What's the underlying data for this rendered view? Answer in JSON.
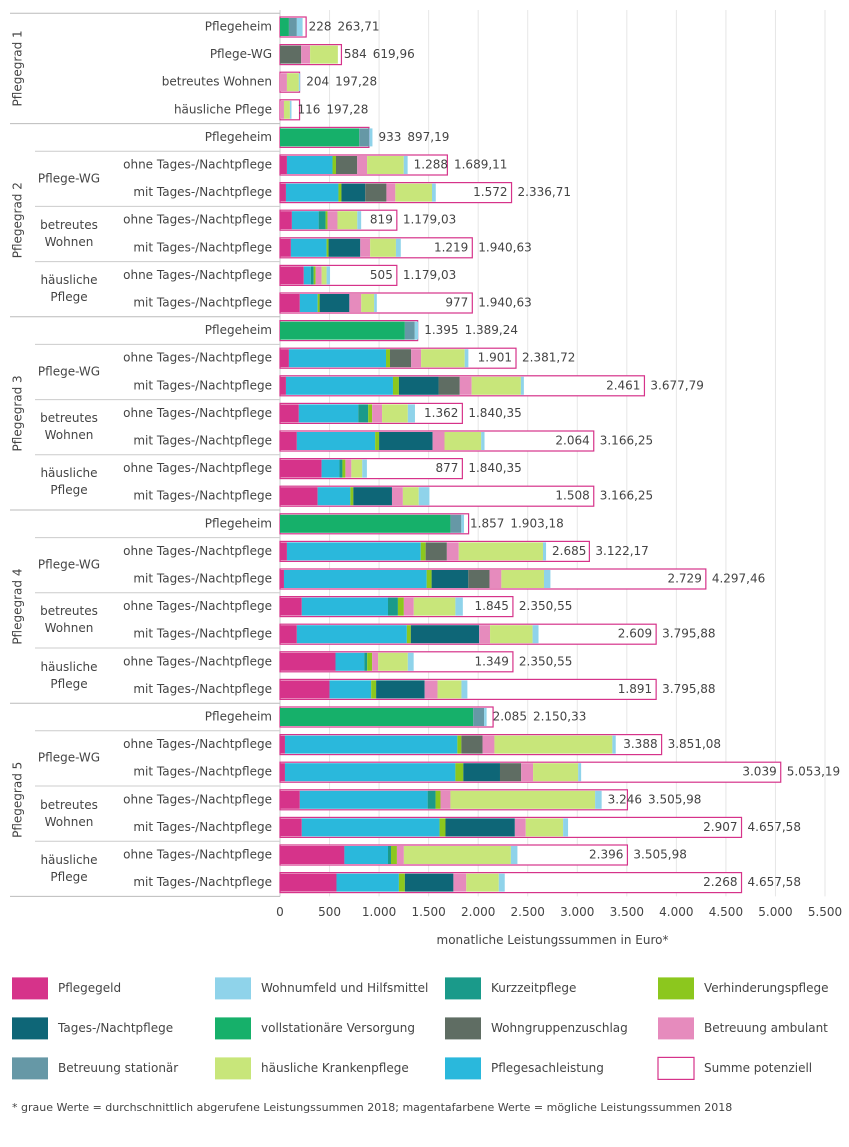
{
  "chart_data": {
    "type": "stacked-bar-horizontal",
    "groups": [
      {
        "name": "Pflegegrad 1",
        "rows": [
          {
            "label": "Pflegeheim"
          },
          {
            "label": "Pflege-WG"
          },
          {
            "label": "betreutes Wohnen"
          },
          {
            "label": "häusliche Pflege"
          }
        ]
      },
      {
        "name": "Pflegegrad 2",
        "rows": [
          {
            "label": "Pflegeheim"
          },
          {
            "name": "Pflege-WG",
            "rows": [
              {
                "label": "ohne Tages-/Nachtpflege"
              },
              {
                "label": "mit Tages-/Nachtpflege"
              }
            ]
          },
          {
            "name": "betreutes Wohnen",
            "rows": [
              {
                "label": "ohne Tages-/Nachtpflege"
              },
              {
                "label": "mit Tages-/Nachtpflege"
              }
            ]
          },
          {
            "name": "häusliche Pflege",
            "rows": [
              {
                "label": "ohne Tages-/Nachtpflege"
              },
              {
                "label": "mit Tages-/Nachtpflege"
              }
            ]
          }
        ]
      },
      {
        "name": "Pflegegrad 3",
        "rows": [
          {
            "label": "Pflegeheim"
          },
          {
            "name": "Pflege-WG",
            "rows": [
              {
                "label": "ohne Tages-/Nachtpflege"
              },
              {
                "label": "mit Tages-/Nachtpflege"
              }
            ]
          },
          {
            "name": "betreutes Wohnen",
            "rows": [
              {
                "label": "ohne Tages-/Nachtpflege"
              },
              {
                "label": "mit Tages-/Nachtpflege"
              }
            ]
          },
          {
            "name": "häusliche Pflege",
            "rows": [
              {
                "label": "ohne Tages-/Nachtpflege"
              },
              {
                "label": "mit Tages-/Nachtpflege"
              }
            ]
          }
        ]
      },
      {
        "name": "Pflegegrad 4",
        "rows": [
          {
            "label": "Pflegeheim"
          },
          {
            "name": "Pflege-WG",
            "rows": [
              {
                "label": "ohne Tages-/Nachtpflege"
              },
              {
                "label": "mit Tages-/Nachtpflege"
              }
            ]
          },
          {
            "name": "betreutes Wohnen",
            "rows": [
              {
                "label": "ohne Tages-/Nachtpflege"
              },
              {
                "label": "mit Tages-/Nachtpflege"
              }
            ]
          },
          {
            "name": "häusliche Pflege",
            "rows": [
              {
                "label": "ohne Tages-/Nachtpflege"
              },
              {
                "label": "mit Tages-/Nachtpflege"
              }
            ]
          }
        ]
      },
      {
        "name": "Pflegegrad 5",
        "rows": [
          {
            "label": "Pflegeheim"
          },
          {
            "name": "Pflege-WG",
            "rows": [
              {
                "label": "ohne Tages-/Nachtpflege"
              },
              {
                "label": "mit Tages-/Nachtpflege"
              }
            ]
          },
          {
            "name": "betreutes Wohnen",
            "rows": [
              {
                "label": "ohne Tages-/Nachtpflege"
              },
              {
                "label": "mit Tages-/Nachtpflege"
              }
            ]
          },
          {
            "name": "häusliche Pflege",
            "rows": [
              {
                "label": "ohne Tages-/Nachtpflege"
              },
              {
                "label": "mit Tages-/Nachtpflege"
              }
            ]
          }
        ]
      }
    ],
    "series": [
      {
        "name": "Pflegegeld",
        "color": "#d6338a",
        "values": [
          null,
          null,
          null,
          null,
          null,
          70,
          60,
          120,
          110,
          240,
          200,
          null,
          90,
          60,
          190,
          170,
          420,
          380,
          null,
          70,
          40,
          220,
          170,
          560,
          500,
          null,
          50,
          50,
          200,
          220,
          650,
          570
        ]
      },
      {
        "name": "Pflegesachleistung",
        "color": "#2ab8dc",
        "values": [
          null,
          null,
          null,
          null,
          null,
          460,
          530,
          270,
          360,
          70,
          180,
          null,
          980,
          1080,
          600,
          790,
          180,
          330,
          null,
          1350,
          1440,
          870,
          1110,
          290,
          420,
          null,
          1740,
          1720,
          1290,
          1390,
          440,
          630
        ]
      },
      {
        "name": "Kurzzeitpflege",
        "color": "#1a9a8a",
        "values": [
          null,
          null,
          null,
          null,
          null,
          null,
          null,
          70,
          null,
          30,
          null,
          null,
          null,
          null,
          100,
          null,
          30,
          null,
          null,
          null,
          null,
          100,
          null,
          30,
          null,
          null,
          null,
          null,
          80,
          null,
          30,
          null
        ]
      },
      {
        "name": "Verhinderungspflege",
        "color": "#8cc71e",
        "values": [
          null,
          null,
          null,
          null,
          null,
          35,
          30,
          20,
          20,
          20,
          20,
          null,
          40,
          60,
          40,
          40,
          30,
          30,
          null,
          50,
          50,
          60,
          40,
          50,
          50,
          null,
          40,
          80,
          50,
          60,
          60,
          60
        ]
      },
      {
        "name": "vollstationäre Versorgung",
        "color": "#16b06a",
        "values": [
          90,
          null,
          null,
          null,
          800,
          null,
          null,
          null,
          null,
          null,
          null,
          1260,
          null,
          null,
          null,
          null,
          null,
          null,
          1720,
          null,
          null,
          null,
          null,
          null,
          null,
          1950,
          null,
          null,
          null,
          null,
          null,
          null
        ]
      },
      {
        "name": "Tages-/Nachtpflege",
        "color": "#0e6677",
        "values": [
          null,
          null,
          null,
          null,
          null,
          null,
          240,
          null,
          320,
          null,
          300,
          null,
          null,
          400,
          null,
          540,
          null,
          390,
          null,
          null,
          370,
          null,
          690,
          null,
          490,
          null,
          null,
          370,
          null,
          700,
          null,
          490
        ]
      },
      {
        "name": "Wohngruppenzuschlag",
        "color": "#5f6d63",
        "values": [
          null,
          214,
          null,
          null,
          null,
          214,
          214,
          null,
          null,
          null,
          null,
          null,
          214,
          214,
          null,
          null,
          null,
          null,
          null,
          214,
          214,
          null,
          null,
          null,
          null,
          null,
          214,
          214,
          null,
          null,
          null,
          null
        ]
      },
      {
        "name": "Betreuung ambulant",
        "color": "#e68bbd",
        "values": [
          null,
          90,
          70,
          40,
          null,
          100,
          90,
          100,
          100,
          60,
          120,
          null,
          100,
          120,
          100,
          120,
          60,
          110,
          null,
          120,
          120,
          100,
          110,
          60,
          130,
          null,
          120,
          120,
          100,
          110,
          70,
          130
        ]
      },
      {
        "name": "Betreuung stationär",
        "color": "#6698a6",
        "values": [
          80,
          null,
          null,
          null,
          100,
          null,
          null,
          null,
          null,
          null,
          null,
          100,
          null,
          null,
          null,
          null,
          null,
          null,
          110,
          null,
          null,
          null,
          null,
          null,
          null,
          110,
          null,
          null,
          null,
          null,
          null,
          null
        ]
      },
      {
        "name": "häusliche Krankenpflege",
        "color": "#c8e67a",
        "values": [
          null,
          280,
          120,
          60,
          null,
          370,
          370,
          200,
          260,
          50,
          130,
          null,
          440,
          497,
          260,
          370,
          110,
          160,
          null,
          850,
          430,
          420,
          429,
          300,
          241,
          null,
          1190,
          455,
          1460,
          377,
          1080,
          328
        ]
      },
      {
        "name": "Wohnumfeld und Hilfsmittel",
        "color": "#8fd3ea",
        "values": [
          58,
          null,
          14,
          16,
          33,
          39,
          38,
          39,
          49,
          35,
          27,
          35,
          37,
          30,
          72,
          34,
          47,
          108,
          27,
          31,
          65,
          75,
          60,
          59,
          60,
          25,
          34,
          30,
          66,
          50,
          66,
          60
        ]
      }
    ],
    "totals": {
      "values": [
        228,
        584,
        204,
        116,
        933,
        1288,
        1572,
        819,
        1219,
        505,
        977,
        1395,
        1901,
        2461,
        1362,
        2064,
        877,
        1508,
        1857,
        2685,
        2729,
        1845,
        2609,
        1349,
        1891,
        2085,
        3388,
        3039,
        3246,
        2907,
        2396,
        2268
      ],
      "value_labels": [
        "228",
        "584",
        "204",
        "116",
        "933",
        "1.288",
        "1.572",
        "819",
        "1.219",
        "505",
        "977",
        "1.395",
        "1.901",
        "2.461",
        "1.362",
        "2.064",
        "877",
        "1.508",
        "1.857",
        "2.685",
        "2.729",
        "1.845",
        "2.609",
        "1.349",
        "1.891",
        "2.085",
        "3.388",
        "3.039",
        "3.246",
        "2.907",
        "2.396",
        "2.268"
      ]
    },
    "potential": {
      "name": "Summe potenziell",
      "color": "#d6338a",
      "values": [
        263.71,
        619.96,
        197.28,
        197.28,
        897.19,
        1689.11,
        2336.71,
        1179.03,
        1940.63,
        1179.03,
        1940.63,
        1389.24,
        2381.72,
        3677.79,
        1840.35,
        3166.25,
        1840.35,
        3166.25,
        1903.18,
        3122.17,
        4297.46,
        2350.55,
        3795.88,
        2350.55,
        3795.88,
        2150.33,
        3851.08,
        5053.19,
        3505.98,
        4657.58,
        3505.98,
        4657.58
      ],
      "value_labels": [
        "263,71",
        "619,96",
        "197,28",
        "197,28",
        "897,19",
        "1.689,11",
        "2.336,71",
        "1.179,03",
        "1.940,63",
        "1.179,03",
        "1.940,63",
        "1.389,24",
        "2.381,72",
        "3.677,79",
        "1.840,35",
        "3.166,25",
        "1.840,35",
        "3.166,25",
        "1.903,18",
        "3.122,17",
        "4.297,46",
        "2.350,55",
        "3.795,88",
        "2.350,55",
        "3.795,88",
        "2.150,33",
        "3.851,08",
        "5.053,19",
        "3.505,98",
        "4.657,58",
        "3.505,98",
        "4.657,58"
      ]
    },
    "xlim": [
      0,
      5500
    ],
    "xticks": [
      0,
      500,
      {
        "value": 1000,
        "label": "1.000"
      },
      {
        "value": 1500,
        "label": "1.500"
      },
      {
        "value": 2000,
        "label": "2.000"
      },
      {
        "value": 2500,
        "label": "2.500"
      },
      {
        "value": 3000,
        "label": "3.000"
      },
      {
        "value": 3500,
        "label": "3.500"
      },
      {
        "value": 4000,
        "label": "4.000"
      },
      {
        "value": 4500,
        "label": "4.500"
      },
      {
        "value": 5000,
        "label": "5.000"
      },
      {
        "value": 5500,
        "label": "5.500"
      }
    ],
    "xlabel": "monatliche Leistungssummen in Euro*",
    "grid": true,
    "footnote": "* graue Werte = durchschnittlich abgerufene Leistungssummen 2018; magentafarbene Werte = mögliche Leistungssummen 2018"
  }
}
